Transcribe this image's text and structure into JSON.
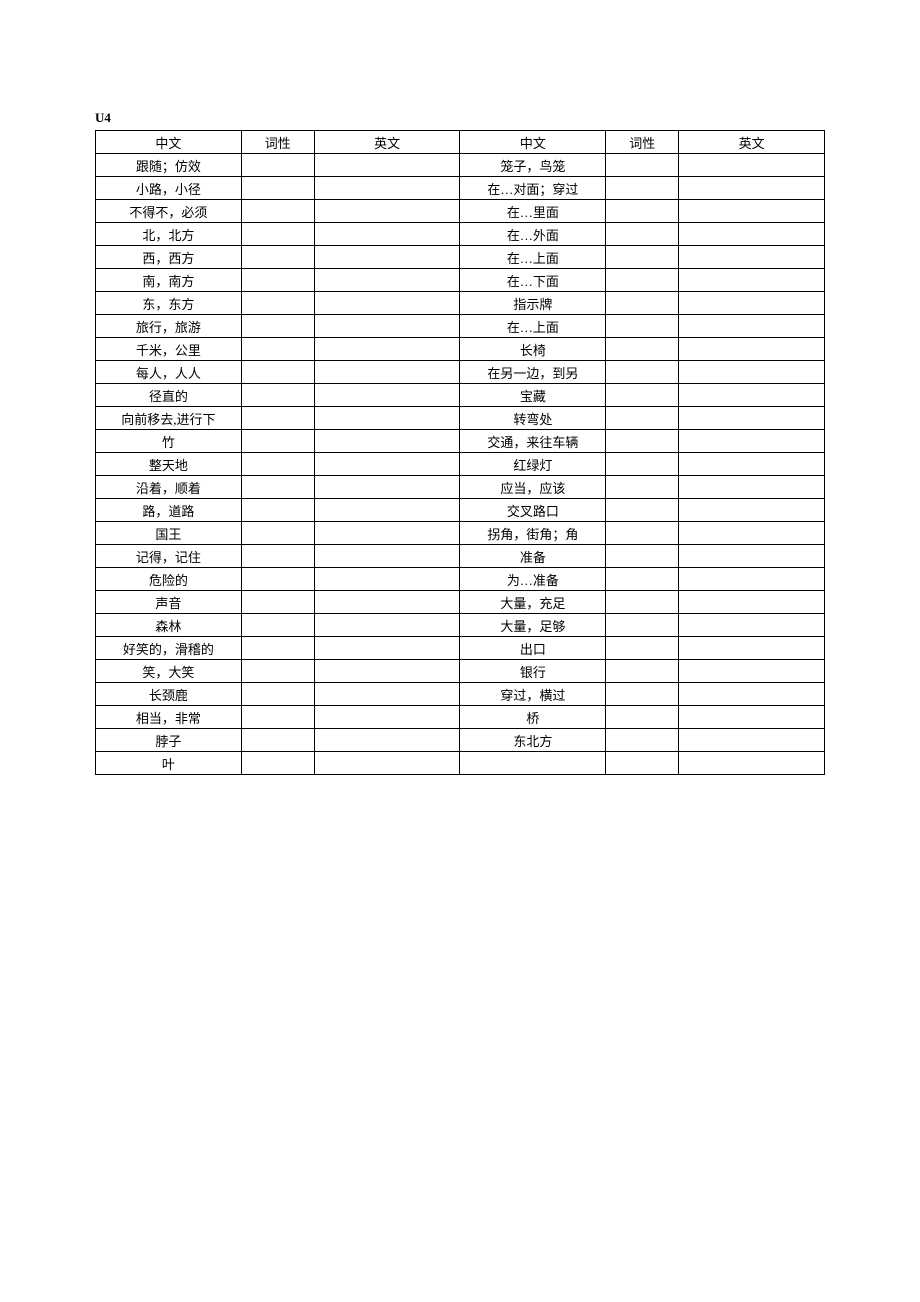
{
  "title": "U4",
  "headers": {
    "cn": "中文",
    "pos": "词性",
    "en": "英文"
  },
  "rows": [
    {
      "left_cn": "跟随；仿效",
      "right_cn": "笼子，鸟笼"
    },
    {
      "left_cn": "小路，小径",
      "right_cn": "在…对面；穿过"
    },
    {
      "left_cn": "不得不，必须",
      "right_cn": "在…里面"
    },
    {
      "left_cn": "北，北方",
      "right_cn": "在…外面"
    },
    {
      "left_cn": "西，西方",
      "right_cn": "在…上面"
    },
    {
      "left_cn": "南，南方",
      "right_cn": "在…下面"
    },
    {
      "left_cn": "东，东方",
      "right_cn": "指示牌"
    },
    {
      "left_cn": "旅行，旅游",
      "right_cn": "在…上面"
    },
    {
      "left_cn": "千米，公里",
      "right_cn": "长椅"
    },
    {
      "left_cn": "每人，人人",
      "right_cn": "在另一边，到另"
    },
    {
      "left_cn": "径直的",
      "right_cn": "宝藏"
    },
    {
      "left_cn": "向前移去,进行下",
      "right_cn": "转弯处"
    },
    {
      "left_cn": "竹",
      "right_cn": "交通，来往车辆"
    },
    {
      "left_cn": "整天地",
      "right_cn": "红绿灯"
    },
    {
      "left_cn": "沿着，顺着",
      "right_cn": "应当，应该"
    },
    {
      "left_cn": "路，道路",
      "right_cn": "交叉路口"
    },
    {
      "left_cn": "国王",
      "right_cn": "拐角，街角；角"
    },
    {
      "left_cn": "记得，记住",
      "right_cn": "准备"
    },
    {
      "left_cn": "危险的",
      "right_cn": "为…准备"
    },
    {
      "left_cn": "声音",
      "right_cn": "大量，充足"
    },
    {
      "left_cn": "森林",
      "right_cn": "大量，足够"
    },
    {
      "left_cn": "好笑的，滑稽的",
      "right_cn": "出口"
    },
    {
      "left_cn": "笑，大笑",
      "right_cn": "银行"
    },
    {
      "left_cn": "长颈鹿",
      "right_cn": "穿过，横过"
    },
    {
      "left_cn": "相当，非常",
      "right_cn": "桥"
    },
    {
      "left_cn": "脖子",
      "right_cn": "东北方"
    },
    {
      "left_cn": "叶",
      "right_cn": ""
    }
  ]
}
